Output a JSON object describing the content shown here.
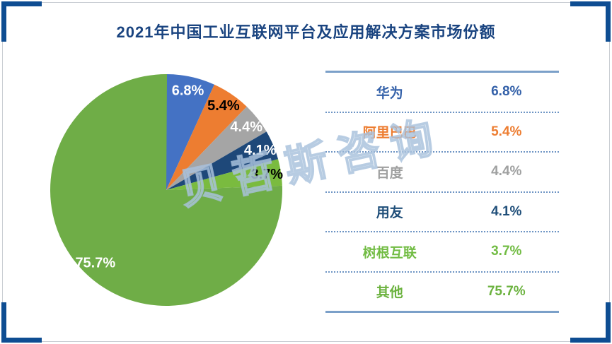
{
  "title": "2021年中国工业互联网平台及应用解决方案市场份额",
  "watermark": "贝哲斯咨询",
  "chart_data": {
    "type": "pie",
    "title": "2021年中国工业互联网平台及应用解决方案市场份额",
    "start_angle_deg": 0,
    "direction": "clockwise",
    "labels_inside": true,
    "legend_position": "right-table",
    "segments": [
      {
        "name": "华为",
        "value": 6.8,
        "label": "6.8%",
        "color": "#4472c4",
        "label_color": "#ffffff",
        "legend_color": "#3461a9"
      },
      {
        "name": "阿里巴巴",
        "value": 5.4,
        "label": "5.4%",
        "color": "#ed7d31",
        "label_color": "#000000",
        "legend_color": "#ed7d31"
      },
      {
        "name": "百度",
        "value": 4.4,
        "label": "4.4%",
        "color": "#a5a5a5",
        "label_color": "#ffffff",
        "legend_color": "#9fa0a0"
      },
      {
        "name": "用友",
        "value": 4.1,
        "label": "4.1%",
        "color": "#1e4879",
        "label_color": "#ffffff",
        "legend_color": "#1f4e79"
      },
      {
        "name": "树根互联",
        "value": 3.7,
        "label": "3.7%",
        "color": "#7abb3f",
        "label_color": "#000000",
        "legend_color": "#72bc44"
      },
      {
        "name": "其他",
        "value": 75.7,
        "label": "75.7%",
        "color": "#6fad47",
        "label_color": "#ffffff",
        "legend_color": "#6bb23e"
      }
    ]
  },
  "colors": {
    "corner_navy": "#0e4d92",
    "title_navy": "#1a4480",
    "table_line": "#7ba0c9",
    "table_dotted": "#6d94c4",
    "frame_gray": "#c9cdd3"
  }
}
